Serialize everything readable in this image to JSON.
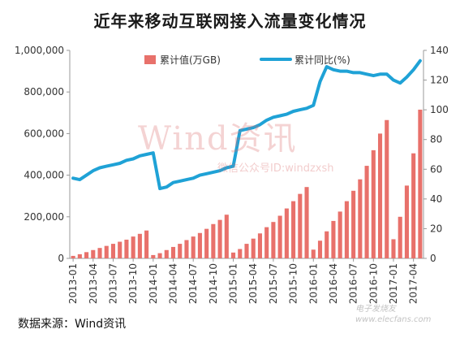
{
  "title": "近年来移动互联网接入流量变化情况",
  "source": "数据来源：Wind资讯",
  "watermark": {
    "main": "Wind资讯",
    "sub": "微信公众号ID:windzxsh",
    "corner1": "电子发烧友",
    "corner2": "www.elecfans.com"
  },
  "colors": {
    "bar": "#e8716b",
    "line": "#1fa2d6",
    "axis": "#999999",
    "text": "#333333"
  },
  "chart_data": {
    "type": "bar",
    "categories": [
      "2013-01",
      "2013-02",
      "2013-03",
      "2013-04",
      "2013-05",
      "2013-06",
      "2013-07",
      "2013-08",
      "2013-09",
      "2013-10",
      "2013-11",
      "2013-12",
      "2014-01",
      "2014-02",
      "2014-03",
      "2014-04",
      "2014-05",
      "2014-06",
      "2014-07",
      "2014-08",
      "2014-09",
      "2014-10",
      "2014-11",
      "2014-12",
      "2015-01",
      "2015-02",
      "2015-03",
      "2015-04",
      "2015-05",
      "2015-06",
      "2015-07",
      "2015-08",
      "2015-09",
      "2015-10",
      "2015-11",
      "2015-12",
      "2016-01",
      "2016-02",
      "2016-03",
      "2016-04",
      "2016-05",
      "2016-06",
      "2016-07",
      "2016-08",
      "2016-09",
      "2016-10",
      "2016-11",
      "2016-12",
      "2017-01",
      "2017-02",
      "2017-03",
      "2017-04",
      "2017-05"
    ],
    "tick_labels": [
      "2013-01",
      "2013-04",
      "2013-07",
      "2013-10",
      "2014-01",
      "2014-04",
      "2014-07",
      "2014-10",
      "2015-01",
      "2015-04",
      "2015-07",
      "2015-10",
      "2016-01",
      "2016-04",
      "2016-07",
      "2016-10",
      "2017-01",
      "2017-04"
    ],
    "series": [
      {
        "name": "累计值(万GB)",
        "type": "bar",
        "axis": "left",
        "values": [
          12000,
          20000,
          30000,
          40000,
          50000,
          60000,
          70000,
          80000,
          90000,
          105000,
          118000,
          134000,
          16000,
          25000,
          40000,
          55000,
          70000,
          88000,
          105000,
          122000,
          142000,
          165000,
          185000,
          210000,
          28000,
          45000,
          70000,
          95000,
          120000,
          150000,
          175000,
          205000,
          240000,
          275000,
          310000,
          343000,
          42000,
          85000,
          130000,
          180000,
          225000,
          275000,
          325000,
          380000,
          445000,
          520000,
          600000,
          665000,
          92000,
          200000,
          350000,
          505000,
          715000
        ],
        "value_overrides_note": ""
      },
      {
        "name": "累计同比(%)",
        "type": "line",
        "axis": "right",
        "values": [
          54,
          53,
          56,
          59,
          61,
          62,
          63,
          64,
          66,
          67,
          69,
          70,
          71,
          47,
          48,
          51,
          52,
          53,
          54,
          56,
          57,
          58,
          59,
          61,
          62,
          86,
          87,
          88,
          90,
          93,
          95,
          96,
          97,
          99,
          100,
          101,
          103,
          119,
          129,
          127,
          126,
          126,
          125,
          125,
          124,
          123,
          124,
          124,
          120,
          118,
          122,
          127,
          133
        ]
      }
    ],
    "y_left": {
      "min": 0,
      "max": 1000000,
      "ticks": [
        "0",
        "200,000",
        "400,000",
        "600,000",
        "800,000",
        "1,000,000"
      ]
    },
    "y_right": {
      "min": 0,
      "max": 140,
      "ticks": [
        "0",
        "20",
        "40",
        "60",
        "80",
        "100",
        "120",
        "140"
      ]
    },
    "legend_position": "top",
    "grid": false
  }
}
